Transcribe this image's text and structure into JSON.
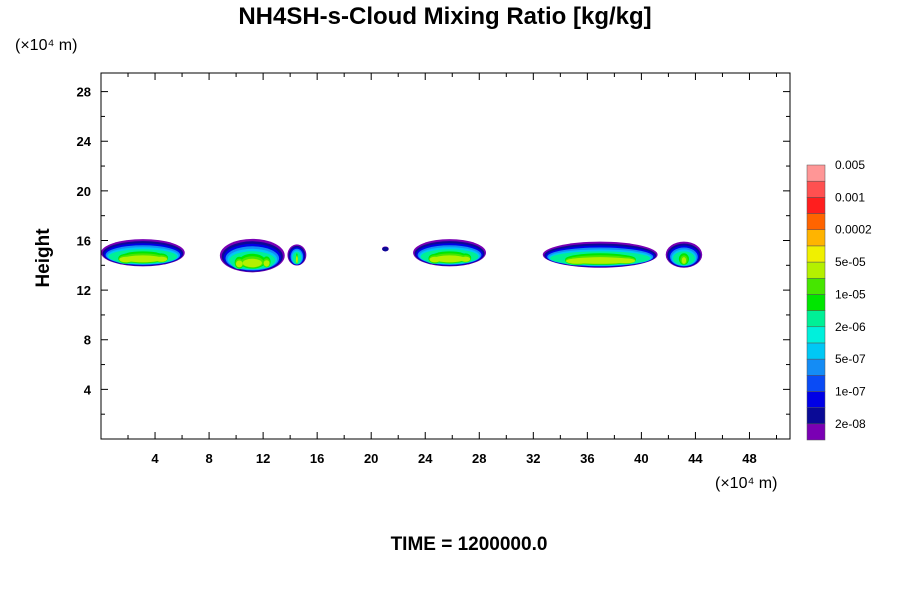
{
  "chart_data": {
    "type": "heatmap",
    "title": "NH4SH-s-Cloud Mixing Ratio [kg/kg]",
    "xlabel": "",
    "ylabel": "Height",
    "x_unit_label": "(×10⁴ m)",
    "y_unit_label": "(×10⁴ m)",
    "xlim": [
      0,
      51
    ],
    "ylim": [
      0,
      29.5
    ],
    "x_ticks": [
      4,
      8,
      12,
      16,
      20,
      24,
      28,
      32,
      36,
      40,
      44,
      48
    ],
    "x_tick_labels": [
      "4",
      "8",
      "12",
      "16",
      "20",
      "24",
      "28",
      "32",
      "36",
      "40",
      "44",
      "48"
    ],
    "y_ticks": [
      4,
      8,
      12,
      16,
      20,
      24,
      28
    ],
    "y_tick_labels": [
      "4",
      "8",
      "12",
      "16",
      "20",
      "24",
      "28"
    ],
    "grid": false,
    "legend_placement": "right",
    "colorbar": {
      "colors": [
        "#7a00b4",
        "#0a0a96",
        "#0000e6",
        "#0a4bf5",
        "#148cf5",
        "#00c8f5",
        "#00f0dc",
        "#00f096",
        "#00e600",
        "#46e600",
        "#b4f000",
        "#f0f000",
        "#ffb400",
        "#ff6400",
        "#ff1e1e",
        "#ff5050",
        "#ff9696"
      ],
      "labels": [
        "2e-08",
        "1e-07",
        "5e-07",
        "2e-06",
        "1e-05",
        "5e-05",
        "0.0002",
        "0.001",
        "0.005"
      ]
    },
    "cloud_regions": [
      {
        "x": [
          0,
          6.2
        ],
        "y": [
          13.8,
          16.0
        ],
        "peak_level": "5e-05"
      },
      {
        "x": [
          8.8,
          13.6
        ],
        "y": [
          13.3,
          16.0
        ],
        "peak_level": "5e-05"
      },
      {
        "x": [
          13.8,
          15.2
        ],
        "y": [
          13.9,
          15.6
        ],
        "peak_level": "5e-05"
      },
      {
        "x": [
          20.8,
          21.3
        ],
        "y": [
          15.1,
          15.5
        ],
        "peak_level": "2e-08"
      },
      {
        "x": [
          23.1,
          28.5
        ],
        "y": [
          13.8,
          16.0
        ],
        "peak_level": "5e-05"
      },
      {
        "x": [
          32.7,
          41.2
        ],
        "y": [
          13.7,
          15.8
        ],
        "peak_level": "5e-05"
      },
      {
        "x": [
          41.8,
          44.5
        ],
        "y": [
          13.7,
          15.8
        ],
        "peak_level": "5e-05"
      }
    ]
  },
  "footer": {
    "time_label": "TIME = 1200000.0"
  }
}
